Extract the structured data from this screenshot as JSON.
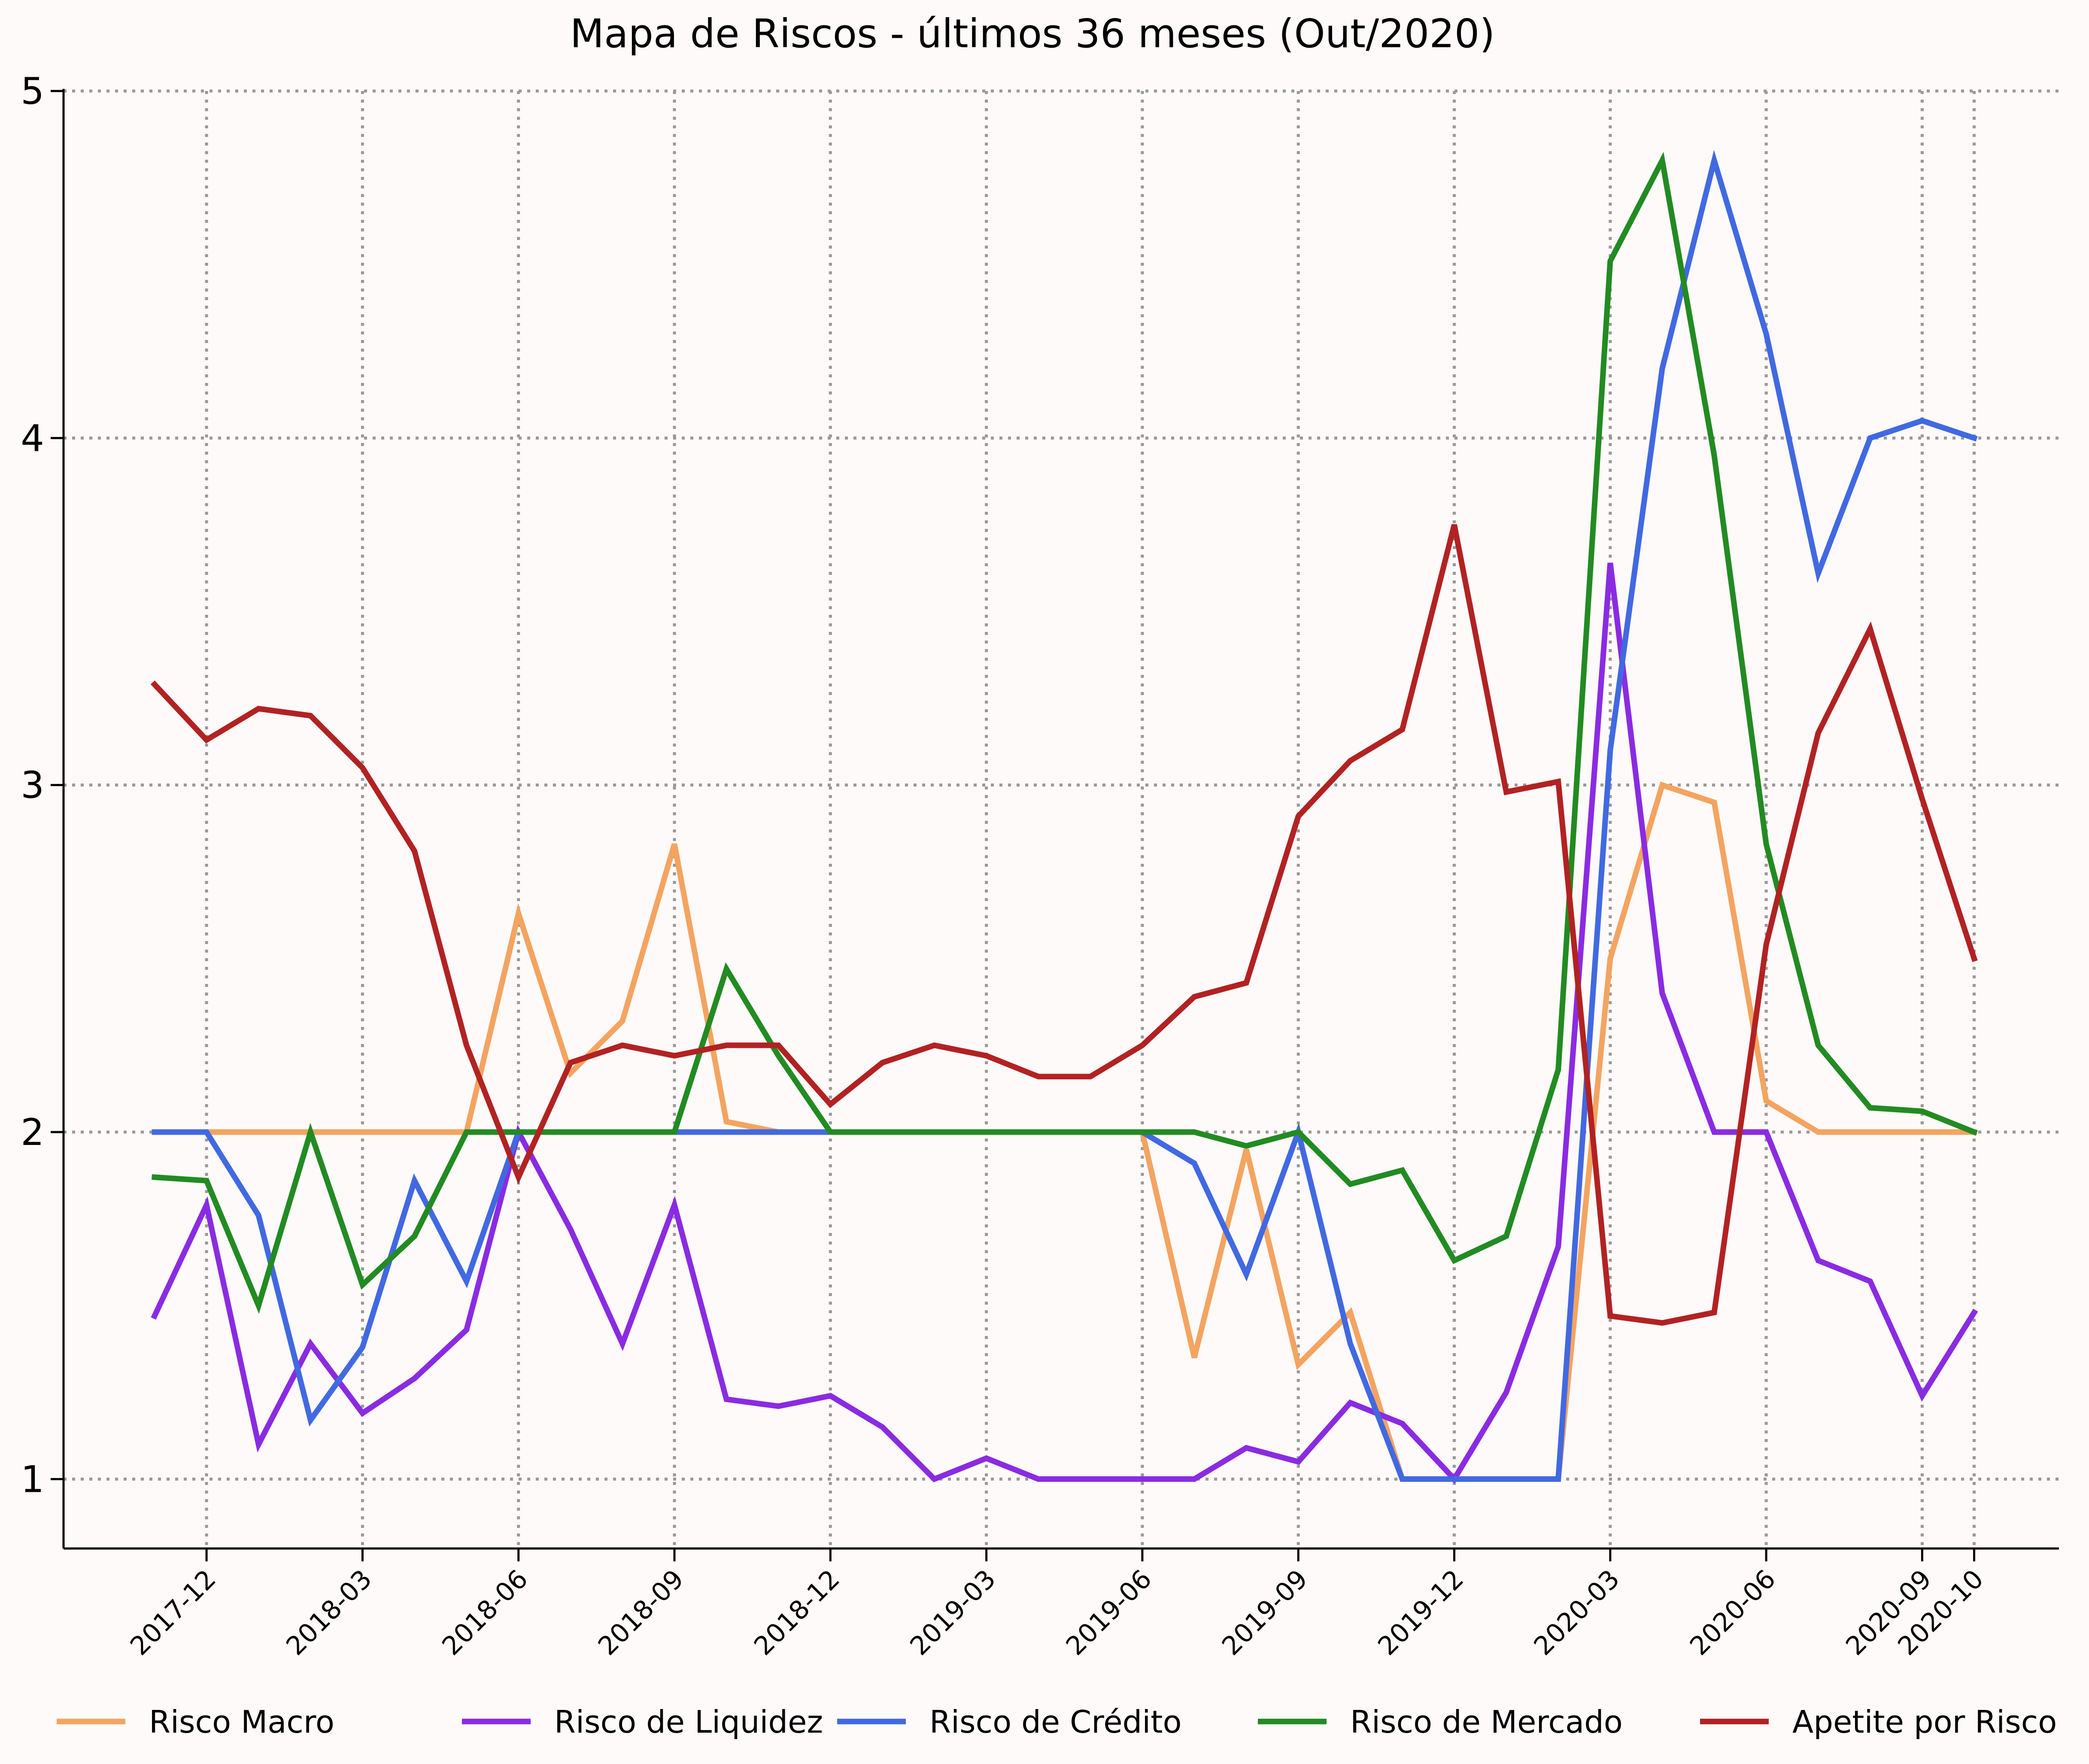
{
  "chart_data": {
    "type": "line",
    "title": "Mapa de Riscos - últimos 36 meses (Out/2020)",
    "xlabel": "",
    "ylabel": "",
    "ylim": [
      0.8,
      5
    ],
    "yticks": [
      1,
      2,
      3,
      4,
      5
    ],
    "grid": true,
    "legend_position": "bottom",
    "x": [
      "2017-11",
      "2017-12",
      "2018-01",
      "2018-02",
      "2018-03",
      "2018-04",
      "2018-05",
      "2018-06",
      "2018-07",
      "2018-08",
      "2018-09",
      "2018-10",
      "2018-11",
      "2018-12",
      "2019-01",
      "2019-02",
      "2019-03",
      "2019-04",
      "2019-05",
      "2019-06",
      "2019-07",
      "2019-08",
      "2019-09",
      "2019-10",
      "2019-11",
      "2019-12",
      "2020-01",
      "2020-02",
      "2020-03",
      "2020-04",
      "2020-05",
      "2020-06",
      "2020-07",
      "2020-08",
      "2020-09",
      "2020-10"
    ],
    "xtick_labels": [
      "2017-12",
      "2018-03",
      "2018-06",
      "2018-09",
      "2018-12",
      "2019-03",
      "2019-06",
      "2019-09",
      "2019-12",
      "2020-03",
      "2020-06",
      "2020-09",
      "2020-10"
    ],
    "series": [
      {
        "name": "Risco Macro",
        "color": "#f4a460",
        "values": [
          2.0,
          2.0,
          2.0,
          2.0,
          2.0,
          2.0,
          2.0,
          2.63,
          2.17,
          2.32,
          2.83,
          2.03,
          2.0,
          2.0,
          2.0,
          2.0,
          2.0,
          2.0,
          2.0,
          2.0,
          1.35,
          1.95,
          1.33,
          1.48,
          1.0,
          1.0,
          1.0,
          1.0,
          2.5,
          3.0,
          2.95,
          2.09,
          2.0,
          2.0,
          2.0,
          2.0
        ]
      },
      {
        "name": "Risco de Liquidez",
        "color": "#8a2be2",
        "values": [
          1.47,
          1.79,
          1.1,
          1.39,
          1.19,
          1.29,
          1.43,
          2.0,
          1.72,
          1.39,
          1.79,
          1.23,
          1.21,
          1.24,
          1.15,
          1.0,
          1.06,
          1.0,
          1.0,
          1.0,
          1.0,
          1.09,
          1.05,
          1.22,
          1.16,
          1.0,
          1.25,
          1.67,
          3.64,
          2.4,
          2.0,
          2.0,
          1.63,
          1.57,
          1.24,
          1.48
        ]
      },
      {
        "name": "Risco de Crédito",
        "color": "#4169e1",
        "values": [
          2.0,
          2.0,
          1.76,
          1.17,
          1.38,
          1.86,
          1.57,
          2.0,
          2.0,
          2.0,
          2.0,
          2.0,
          2.0,
          2.0,
          2.0,
          2.0,
          2.0,
          2.0,
          2.0,
          2.0,
          1.91,
          1.59,
          2.0,
          1.39,
          1.0,
          1.0,
          1.0,
          1.0,
          3.1,
          4.2,
          4.8,
          4.3,
          3.61,
          4.0,
          4.05,
          4.0
        ]
      },
      {
        "name": "Risco de Mercado",
        "color": "#228b22",
        "values": [
          1.87,
          1.86,
          1.5,
          2.0,
          1.56,
          1.7,
          2.0,
          2.0,
          2.0,
          2.0,
          2.0,
          2.47,
          2.22,
          2.0,
          2.0,
          2.0,
          2.0,
          2.0,
          2.0,
          2.0,
          2.0,
          1.96,
          2.0,
          1.85,
          1.89,
          1.63,
          1.7,
          2.18,
          4.51,
          4.8,
          3.95,
          2.83,
          2.25,
          2.07,
          2.06,
          2.0
        ]
      },
      {
        "name": "Apetite por Risco",
        "color": "#b22222",
        "values": [
          3.29,
          3.13,
          3.22,
          3.2,
          3.05,
          2.81,
          2.25,
          1.87,
          2.2,
          2.25,
          2.22,
          2.25,
          2.25,
          2.08,
          2.2,
          2.25,
          2.22,
          2.16,
          2.16,
          2.25,
          2.39,
          2.43,
          2.91,
          3.07,
          3.16,
          3.75,
          2.98,
          3.01,
          1.47,
          1.45,
          1.48,
          2.54,
          3.15,
          3.45,
          2.96,
          2.5
        ]
      }
    ]
  }
}
